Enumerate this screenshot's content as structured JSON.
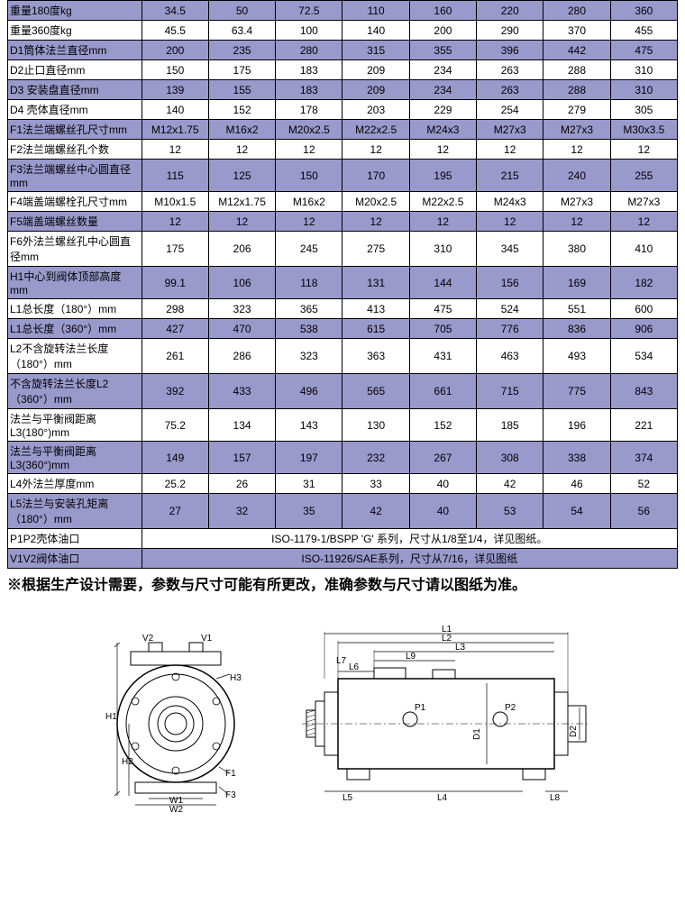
{
  "table": {
    "colors": {
      "row_alt": "#9999cc",
      "row_white": "#ffffff",
      "border": "#000000"
    },
    "rows": [
      {
        "alt": true,
        "label": "重量180度kg",
        "values": [
          "34.5",
          "50",
          "72.5",
          "110",
          "160",
          "220",
          "280",
          "360"
        ]
      },
      {
        "alt": false,
        "label": "重量360度kg",
        "values": [
          "45.5",
          "63.4",
          "100",
          "140",
          "200",
          "290",
          "370",
          "455"
        ]
      },
      {
        "alt": true,
        "label": "D1筒体法兰直径mm",
        "values": [
          "200",
          "235",
          "280",
          "315",
          "355",
          "396",
          "442",
          "475"
        ]
      },
      {
        "alt": false,
        "label": "D2止口直径mm",
        "values": [
          "150",
          "175",
          "183",
          "209",
          "234",
          "263",
          "288",
          "310"
        ]
      },
      {
        "alt": true,
        "label": "D3 安装盘直径mm",
        "values": [
          "139",
          "155",
          "183",
          "209",
          "234",
          "263",
          "288",
          "310"
        ]
      },
      {
        "alt": false,
        "label": "D4 壳体直径mm",
        "values": [
          "140",
          "152",
          "178",
          "203",
          "229",
          "254",
          "279",
          "305"
        ]
      },
      {
        "alt": true,
        "label": "F1法兰端螺丝孔尺寸mm",
        "values": [
          "M12x1.75",
          "M16x2",
          "M20x2.5",
          "M22x2.5",
          "M24x3",
          "M27x3",
          "M27x3",
          "M30x3.5"
        ]
      },
      {
        "alt": false,
        "label": "F2法兰端螺丝孔个数",
        "values": [
          "12",
          "12",
          "12",
          "12",
          "12",
          "12",
          "12",
          "12"
        ]
      },
      {
        "alt": true,
        "label": "F3法兰端螺丝中心圆直径mm",
        "values": [
          "115",
          "125",
          "150",
          "170",
          "195",
          "215",
          "240",
          "255"
        ]
      },
      {
        "alt": false,
        "label": "F4端盖端螺栓孔尺寸mm",
        "values": [
          "M10x1.5",
          "M12x1.75",
          "M16x2",
          "M20x2.5",
          "M22x2.5",
          "M24x3",
          "M27x3",
          "M27x3"
        ]
      },
      {
        "alt": true,
        "label": "F5端盖端螺丝数量",
        "values": [
          "12",
          "12",
          "12",
          "12",
          "12",
          "12",
          "12",
          "12"
        ]
      },
      {
        "alt": false,
        "label": "F6外法兰螺丝孔中心圆直径mm",
        "values": [
          "175",
          "206",
          "245",
          "275",
          "310",
          "345",
          "380",
          "410"
        ]
      },
      {
        "alt": true,
        "label": "H1中心到阀体顶部高度mm",
        "values": [
          "99.1",
          "106",
          "118",
          "131",
          "144",
          "156",
          "169",
          "182"
        ]
      },
      {
        "alt": false,
        "label": "L1总长度（180°）mm",
        "values": [
          "298",
          "323",
          "365",
          "413",
          "475",
          "524",
          "551",
          "600"
        ]
      },
      {
        "alt": true,
        "label": "L1总长度（360°）mm",
        "values": [
          "427",
          "470",
          "538",
          "615",
          "705",
          "776",
          "836",
          "906"
        ]
      },
      {
        "alt": false,
        "label": "L2不含旋转法兰长度（180°）mm",
        "values": [
          "261",
          "286",
          "323",
          "363",
          "431",
          "463",
          "493",
          "534"
        ]
      },
      {
        "alt": true,
        "label": "不含旋转法兰长度L2（360°）mm",
        "values": [
          "392",
          "433",
          "496",
          "565",
          "661",
          "715",
          "775",
          "843"
        ]
      },
      {
        "alt": false,
        "label": "法兰与平衡阀距离L3(180°)mm",
        "values": [
          "75.2",
          "134",
          "143",
          "130",
          "152",
          "185",
          "196",
          "221"
        ]
      },
      {
        "alt": true,
        "label": "法兰与平衡阀距离L3(360°)mm",
        "values": [
          "149",
          "157",
          "197",
          "232",
          "267",
          "308",
          "338",
          "374"
        ]
      },
      {
        "alt": false,
        "label": "L4外法兰厚度mm",
        "values": [
          "25.2",
          "26",
          "31",
          "33",
          "40",
          "42",
          "46",
          "52"
        ]
      },
      {
        "alt": true,
        "label": "L5法兰与安装孔矩离（180°）mm",
        "values": [
          "27",
          "32",
          "35",
          "42",
          "40",
          "53",
          "54",
          "56"
        ]
      }
    ],
    "merged_rows": [
      {
        "alt": false,
        "label": "P1P2壳体油口",
        "text": "ISO-1179-1/BSPP 'G' 系列，尺寸从1/8至1/4，详见图纸。"
      },
      {
        "alt": true,
        "label": "V1V2阀体油口",
        "text": "ISO-11926/SAE系列，尺寸从7/16，详见图纸"
      }
    ]
  },
  "note": "※根据生产设计需要，参数与尺寸可能有所更改，准确参数与尺寸请以图纸为准。",
  "diagram": {
    "labels": [
      "V2",
      "V1",
      "H1",
      "H2",
      "W1",
      "W2",
      "F1",
      "F3",
      "H3",
      "L1",
      "L2",
      "L3",
      "L9",
      "L6",
      "P1",
      "P2",
      "D1",
      "D2",
      "L5",
      "L4",
      "L8",
      "L7"
    ]
  }
}
